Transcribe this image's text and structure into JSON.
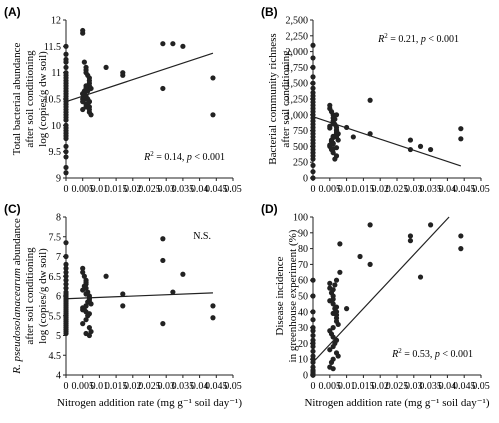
{
  "chart_data": [
    {
      "type": "scatter",
      "panel_letter": "(A)",
      "ylabel_lines": [
        "Total bacterial  abundance",
        "after soil conditioning",
        "log (copies/g dw soil)"
      ],
      "xlabel": "",
      "xlim": [
        0,
        0.05
      ],
      "ylim": [
        9,
        12
      ],
      "xticks": [
        0,
        0.005,
        0.01,
        0.015,
        0.02,
        0.025,
        0.03,
        0.035,
        0.04,
        0.045,
        0.05
      ],
      "xticklabels": [
        "0",
        "0.005",
        "0.01",
        "0.015",
        "0.02",
        "0.025",
        "0.03",
        "0.035",
        "0.04",
        "0.045",
        "0.05"
      ],
      "yticks": [
        9,
        9.5,
        10,
        10.5,
        11,
        11.5,
        12
      ],
      "yticklabels": [
        "9",
        "9.5",
        "10",
        "10.5",
        "11",
        "11.5",
        "12"
      ],
      "annotation": {
        "r2": "0.14",
        "p": "< 0.001",
        "pos": "lower-right"
      },
      "fit_line": {
        "x": [
          0,
          0.044
        ],
        "y": [
          10.45,
          11.37
        ]
      },
      "points": {
        "x": [
          0,
          0,
          0,
          0,
          0,
          0,
          0,
          0,
          0,
          0,
          0,
          0,
          0,
          0,
          0,
          0,
          0,
          0,
          0,
          0,
          0,
          0,
          0,
          0,
          0,
          0,
          0,
          0,
          0,
          0,
          0,
          0,
          0,
          0,
          0,
          0.005,
          0.005,
          0.0055,
          0.006,
          0.006,
          0.006,
          0.0065,
          0.007,
          0.007,
          0.007,
          0.007,
          0.0075,
          0.006,
          0.005,
          0.0055,
          0.006,
          0.007,
          0.0065,
          0.006,
          0.005,
          0.007,
          0.0075,
          0.006,
          0.0055,
          0.005,
          0.006,
          0.007,
          0.0065,
          0.006,
          0.005,
          0.007,
          0.006,
          0.0055,
          0.006,
          0.007,
          0.0065,
          0.005,
          0.006,
          0.012,
          0.017,
          0.017,
          0.029,
          0.029,
          0.032,
          0.035,
          0.044,
          0.044
        ],
        "y": [
          11.5,
          11.35,
          11.25,
          11.2,
          11.1,
          11.0,
          10.95,
          10.9,
          10.85,
          10.8,
          10.75,
          10.7,
          10.65,
          10.6,
          10.55,
          10.5,
          10.45,
          10.4,
          10.35,
          10.3,
          10.25,
          10.2,
          10.15,
          10.1,
          10.0,
          9.95,
          9.9,
          9.85,
          9.8,
          9.75,
          9.6,
          9.5,
          9.4,
          9.2,
          9.1,
          11.8,
          11.75,
          11.2,
          11.1,
          11.05,
          11.0,
          10.95,
          10.9,
          10.85,
          10.8,
          10.75,
          10.7,
          10.65,
          10.6,
          10.55,
          10.5,
          10.45,
          10.4,
          10.35,
          10.3,
          10.25,
          10.2,
          10.7,
          10.6,
          10.5,
          10.4,
          10.3,
          10.65,
          10.55,
          10.45,
          10.35,
          10.75,
          10.65,
          10.55,
          10.45,
          10.5,
          10.6,
          10.7,
          11.1,
          11.0,
          10.95,
          11.55,
          10.7,
          11.55,
          11.5,
          10.9,
          10.2
        ]
      }
    },
    {
      "type": "scatter",
      "panel_letter": "(B)",
      "ylabel_lines": [
        "Bacterial community richness",
        "after soil conditioning"
      ],
      "xlabel": "",
      "xlim": [
        0,
        0.05
      ],
      "ylim": [
        0,
        2500
      ],
      "xticks": [
        0,
        0.005,
        0.01,
        0.015,
        0.02,
        0.025,
        0.03,
        0.035,
        0.04,
        0.045,
        0.05
      ],
      "xticklabels": [
        "0",
        "0.005",
        "0.01",
        "0.015",
        "0.02",
        "0.025",
        "0.03",
        "0.035",
        "0.04",
        "0.045",
        "0.05"
      ],
      "yticks": [
        0,
        250,
        500,
        750,
        1000,
        1250,
        1500,
        1750,
        2000,
        2250,
        2500
      ],
      "yticklabels": [
        "0",
        "250",
        "500",
        "750",
        "1,000",
        "1,250",
        "1,500",
        "1,750",
        "2,000",
        "2,250",
        "2,500"
      ],
      "annotation": {
        "r2": "0.21",
        "p": "< 0.001",
        "pos": "top-right"
      },
      "fit_line": {
        "x": [
          0,
          0.044
        ],
        "y": [
          970,
          190
        ]
      },
      "points": {
        "x": [
          0,
          0,
          0,
          0,
          0,
          0,
          0,
          0,
          0,
          0,
          0,
          0,
          0,
          0,
          0,
          0,
          0,
          0,
          0,
          0,
          0,
          0,
          0,
          0,
          0,
          0,
          0,
          0,
          0,
          0,
          0,
          0.005,
          0.005,
          0.0055,
          0.006,
          0.006,
          0.006,
          0.0065,
          0.007,
          0.007,
          0.007,
          0.007,
          0.0075,
          0.006,
          0.005,
          0.0055,
          0.006,
          0.007,
          0.0065,
          0.006,
          0.005,
          0.007,
          0.0075,
          0.006,
          0.0055,
          0.005,
          0.006,
          0.007,
          0.0065,
          0.006,
          0.005,
          0.007,
          0.006,
          0.0055,
          0.006,
          0.007,
          0.01,
          0.012,
          0.017,
          0.017,
          0.029,
          0.029,
          0.032,
          0.035,
          0.044,
          0.044
        ],
        "y": [
          2100,
          1900,
          1750,
          1600,
          1500,
          1420,
          1350,
          1300,
          1250,
          1200,
          1150,
          1100,
          1050,
          1000,
          950,
          900,
          850,
          800,
          750,
          700,
          650,
          600,
          550,
          500,
          450,
          400,
          350,
          300,
          200,
          100,
          0,
          1150,
          1100,
          1050,
          1000,
          950,
          900,
          850,
          800,
          750,
          700,
          650,
          600,
          550,
          500,
          450,
          400,
          350,
          300,
          880,
          820,
          760,
          700,
          640,
          580,
          520,
          460,
          1000,
          930,
          860,
          790,
          720,
          660,
          600,
          540,
          480,
          800,
          650,
          700,
          1230,
          600,
          450,
          500,
          450,
          780,
          620
        ]
      }
    },
    {
      "type": "scatter",
      "panel_letter": "(C)",
      "ylabel_lines": [
        "R. pseudosolanacearum abundance",
        "after soil conditioning",
        "log (copies/g dw soil)"
      ],
      "xlabel": "Nitrogen addition rate (mg g⁻¹ soil day⁻¹)",
      "xlim": [
        0,
        0.05
      ],
      "ylim": [
        4,
        8
      ],
      "xticks": [
        0,
        0.005,
        0.01,
        0.015,
        0.02,
        0.025,
        0.03,
        0.035,
        0.04,
        0.045,
        0.05
      ],
      "xticklabels": [
        "0",
        "0.005",
        "0.01",
        "0.015",
        "0.02",
        "0.025",
        "0.03",
        "0.035",
        "0.04",
        "0.045",
        "0.05"
      ],
      "yticks": [
        4,
        4.5,
        5,
        5.5,
        6,
        6.5,
        7,
        7.5,
        8
      ],
      "yticklabels": [
        "4",
        "4.5",
        "5",
        "5.5",
        "6",
        "6.5",
        "7",
        "7.5",
        "8"
      ],
      "annotation": {
        "text": "N.S.",
        "pos": "top-right"
      },
      "fit_line": {
        "x": [
          0,
          0.044
        ],
        "y": [
          5.93,
          6.08
        ]
      },
      "points": {
        "x": [
          0,
          0,
          0,
          0,
          0,
          0,
          0,
          0,
          0,
          0,
          0,
          0,
          0,
          0,
          0,
          0,
          0,
          0,
          0,
          0,
          0,
          0,
          0,
          0,
          0,
          0,
          0,
          0,
          0,
          0,
          0,
          0.005,
          0.005,
          0.0055,
          0.006,
          0.006,
          0.006,
          0.0065,
          0.007,
          0.007,
          0.007,
          0.007,
          0.0075,
          0.006,
          0.005,
          0.0055,
          0.006,
          0.007,
          0.0065,
          0.006,
          0.005,
          0.007,
          0.0075,
          0.006,
          0.0055,
          0.005,
          0.006,
          0.007,
          0.0065,
          0.006,
          0.005,
          0.007,
          0.006,
          0.012,
          0.017,
          0.017,
          0.029,
          0.029,
          0.029,
          0.032,
          0.035,
          0.044,
          0.044
        ],
        "y": [
          7.35,
          7.0,
          6.8,
          6.7,
          6.6,
          6.5,
          6.4,
          6.3,
          6.2,
          6.1,
          6.05,
          6.0,
          5.95,
          5.9,
          5.85,
          5.8,
          5.75,
          5.7,
          5.65,
          5.6,
          5.55,
          5.5,
          5.45,
          5.4,
          5.35,
          5.3,
          5.25,
          5.2,
          5.15,
          5.1,
          5.05,
          6.7,
          6.6,
          6.5,
          6.4,
          6.3,
          6.2,
          6.1,
          6.0,
          5.95,
          5.9,
          5.85,
          5.8,
          5.75,
          5.7,
          5.65,
          5.6,
          5.55,
          5.5,
          5.4,
          5.3,
          5.2,
          5.1,
          6.35,
          6.25,
          6.15,
          6.05,
          5.95,
          5.85,
          5.75,
          5.65,
          5.0,
          5.05,
          6.5,
          6.05,
          5.75,
          7.45,
          6.9,
          5.3,
          6.1,
          6.55,
          5.75,
          5.45
        ]
      }
    },
    {
      "type": "scatter",
      "panel_letter": "(D)",
      "ylabel_lines": [
        "Disease incidence",
        "in greenhouse experiment (%)"
      ],
      "xlabel": "Nitrogen addition rate (mg g⁻¹ soil day⁻¹)",
      "xlim": [
        0,
        0.05
      ],
      "ylim": [
        0,
        100
      ],
      "xticks": [
        0,
        0.005,
        0.01,
        0.015,
        0.02,
        0.025,
        0.03,
        0.035,
        0.04,
        0.045,
        0.05
      ],
      "xticklabels": [
        "0",
        "0.005",
        "0.01",
        "0.015",
        "0.02",
        "0.025",
        "0.03",
        "0.035",
        "0.04",
        "0.045",
        "0.05"
      ],
      "yticks": [
        0,
        10,
        20,
        30,
        40,
        50,
        60,
        70,
        80,
        90,
        100
      ],
      "yticklabels": [
        "0",
        "10",
        "20",
        "30",
        "40",
        "50",
        "60",
        "70",
        "80",
        "90",
        "100"
      ],
      "annotation": {
        "r2": "0.53",
        "p": "< 0.001",
        "pos": "lower-right"
      },
      "fit_line": {
        "x": [
          0,
          0.0405
        ],
        "y": [
          8,
          100
        ]
      },
      "points": {
        "x": [
          0,
          0,
          0,
          0,
          0,
          0,
          0,
          0,
          0,
          0,
          0,
          0,
          0,
          0,
          0,
          0,
          0,
          0,
          0,
          0,
          0,
          0.005,
          0.005,
          0.0055,
          0.006,
          0.006,
          0.006,
          0.0065,
          0.007,
          0.007,
          0.007,
          0.007,
          0.0075,
          0.006,
          0.005,
          0.0055,
          0.006,
          0.007,
          0.0065,
          0.006,
          0.005,
          0.007,
          0.0075,
          0.006,
          0.0055,
          0.005,
          0.006,
          0.007,
          0.0065,
          0.006,
          0.005,
          0.007,
          0.006,
          0.008,
          0.008,
          0.01,
          0.014,
          0.017,
          0.017,
          0.029,
          0.029,
          0.032,
          0.035,
          0.044,
          0.044
        ],
        "y": [
          60,
          50,
          40,
          35,
          30,
          28,
          25,
          22,
          20,
          18,
          15,
          12,
          10,
          8,
          5,
          3,
          2,
          1,
          0,
          0,
          0,
          58,
          55,
          52,
          50,
          48,
          45,
          42,
          40,
          38,
          36,
          34,
          32,
          30,
          28,
          26,
          24,
          22,
          20,
          18,
          16,
          14,
          12,
          10,
          8,
          5,
          4,
          60,
          57,
          54,
          47,
          43,
          39,
          83,
          65,
          42,
          75,
          95,
          70,
          88,
          85,
          62,
          95,
          88,
          80
        ]
      }
    }
  ],
  "r2_label": "R",
  "p_label": "p"
}
